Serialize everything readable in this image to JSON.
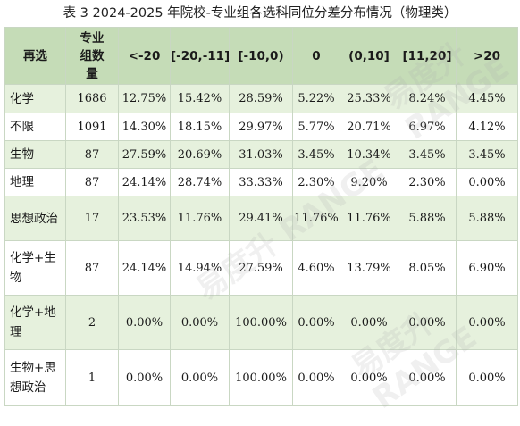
{
  "caption": "表 3 2024-2025 年院校-专业组各选科同位分差分布情况（物理类）",
  "header": [
    "再选",
    "专业组数量",
    "<-20",
    "[-20,-11]",
    "[-10,0)",
    "0",
    "(0,10]",
    "[11,20]",
    ">20"
  ],
  "rows": [
    [
      "化学",
      "1686",
      "12.75%",
      "15.42%",
      "28.59%",
      "5.22%",
      "25.33%",
      "8.24%",
      "4.45%"
    ],
    [
      "不限",
      "1091",
      "14.30%",
      "18.15%",
      "29.97%",
      "5.77%",
      "20.71%",
      "6.97%",
      "4.12%"
    ],
    [
      "生物",
      "87",
      "27.59%",
      "20.69%",
      "31.03%",
      "3.45%",
      "10.34%",
      "3.45%",
      "3.45%"
    ],
    [
      "地理",
      "87",
      "24.14%",
      "28.74%",
      "33.33%",
      "2.30%",
      "9.20%",
      "2.30%",
      "0.00%"
    ],
    [
      "思想政治",
      "17",
      "23.53%",
      "11.76%",
      "29.41%",
      "11.76%",
      "11.76%",
      "5.88%",
      "5.88%"
    ],
    [
      "化学+生物",
      "87",
      "24.14%",
      "14.94%",
      "27.59%",
      "4.60%",
      "13.79%",
      "8.05%",
      "6.90%"
    ],
    [
      "化学+地理",
      "2",
      "0.00%",
      "0.00%",
      "100.00%",
      "0.00%",
      "0.00%",
      "0.00%",
      "0.00%"
    ],
    [
      "生物+思想政治",
      "1",
      "0.00%",
      "0.00%",
      "100.00%",
      "0.00%",
      "0.00%",
      "0.00%",
      "0.00%"
    ]
  ],
  "watermark": "易度升 RANGE"
}
